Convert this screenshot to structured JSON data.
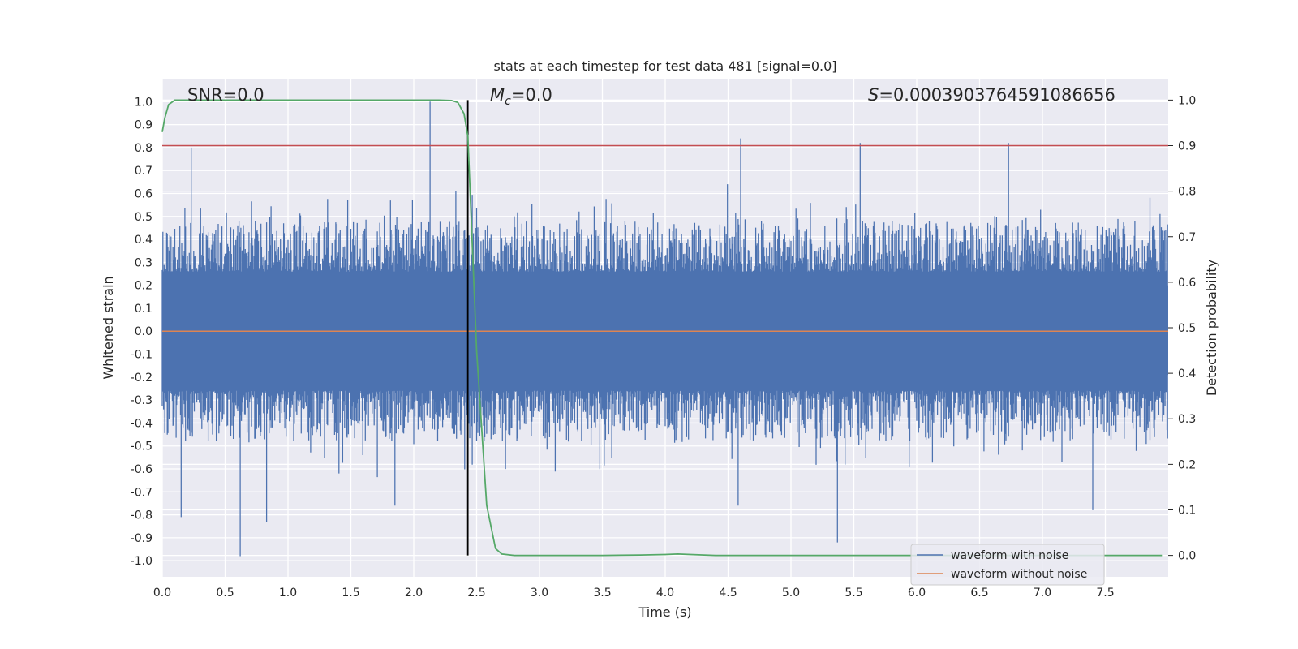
{
  "chart_data": {
    "type": "line",
    "title": "stats at each timestep for test data 481 [signal=0.0]",
    "xlabel": "Time (s)",
    "ylabel": "Whitened strain",
    "y2label": "Detection probability",
    "xlim": [
      0.0,
      8.0
    ],
    "ylim": [
      -1.07,
      1.1
    ],
    "y2lim": [
      -0.047,
      1.047
    ],
    "x_ticks": [
      "0.0",
      "0.5",
      "1.0",
      "1.5",
      "2.0",
      "2.5",
      "3.0",
      "3.5",
      "4.0",
      "4.5",
      "5.0",
      "5.5",
      "6.0",
      "6.5",
      "7.0",
      "7.5"
    ],
    "y_ticks": [
      "1.0",
      "0.9",
      "0.8",
      "0.7",
      "0.6",
      "0.5",
      "0.4",
      "0.3",
      "0.2",
      "0.1",
      "0.0",
      "-0.1",
      "-0.2",
      "-0.3",
      "-0.4",
      "-0.5",
      "-0.6",
      "-0.7",
      "-0.8",
      "-0.9",
      "-1.0"
    ],
    "y2_ticks": [
      "1.0",
      "0.9",
      "0.8",
      "0.7",
      "0.6",
      "0.5",
      "0.4",
      "0.3",
      "0.2",
      "0.1",
      "0.0"
    ],
    "annotations": {
      "snr": "SNR=0.0",
      "mc_symbol": "M",
      "mc_sub": "c",
      "mc_value": "=0.0",
      "s_symbol": "S",
      "s_value": "=0.0003903764591086656"
    },
    "threshold": {
      "value": 0.9,
      "axis": "right",
      "color": "#C44E52"
    },
    "vertical_line": {
      "x": 2.43,
      "color": "#000000"
    },
    "series": [
      {
        "name": "waveform with noise",
        "color": "#4C72B0",
        "kind": "dense noise, approx. range -1.0 to 1.0",
        "notable_peaks": [
          {
            "x": 0.23,
            "y": 0.8
          },
          {
            "x": 2.13,
            "y": 1.0
          },
          {
            "x": 4.6,
            "y": 0.84
          },
          {
            "x": 5.55,
            "y": 0.82
          },
          {
            "x": 6.73,
            "y": 0.82
          },
          {
            "x": 0.62,
            "y": -0.98
          },
          {
            "x": 0.83,
            "y": -0.83
          },
          {
            "x": 0.15,
            "y": -0.81
          },
          {
            "x": 5.37,
            "y": -0.92
          },
          {
            "x": 1.85,
            "y": -0.76
          },
          {
            "x": 7.4,
            "y": -0.78
          },
          {
            "x": 4.58,
            "y": -0.76
          }
        ]
      },
      {
        "name": "waveform without noise",
        "color": "#DD8452",
        "x": [
          0.0,
          8.0
        ],
        "y": [
          0.0,
          0.0
        ]
      },
      {
        "name": "detection probability",
        "axis": "right",
        "color": "#55A868",
        "x": [
          0.0,
          0.02,
          0.05,
          0.1,
          0.2,
          0.5,
          1.0,
          1.5,
          2.0,
          2.2,
          2.3,
          2.35,
          2.4,
          2.43,
          2.5,
          2.58,
          2.65,
          2.7,
          2.8,
          3.0,
          3.5,
          3.8,
          4.0,
          4.1,
          4.2,
          4.4,
          5.0,
          6.0,
          7.0,
          7.95
        ],
        "y": [
          0.93,
          0.96,
          0.99,
          1.0,
          1.0,
          1.0,
          1.0,
          1.0,
          1.0,
          1.0,
          0.999,
          0.995,
          0.97,
          0.92,
          0.45,
          0.11,
          0.015,
          0.003,
          0.0,
          0.0,
          0.0,
          0.001,
          0.002,
          0.003,
          0.002,
          0.0,
          0.0,
          0.0,
          0.0,
          0.0
        ]
      }
    ],
    "legend": {
      "position": "lower-right",
      "entries": [
        "waveform with noise",
        "waveform without noise"
      ]
    },
    "grid": true
  }
}
